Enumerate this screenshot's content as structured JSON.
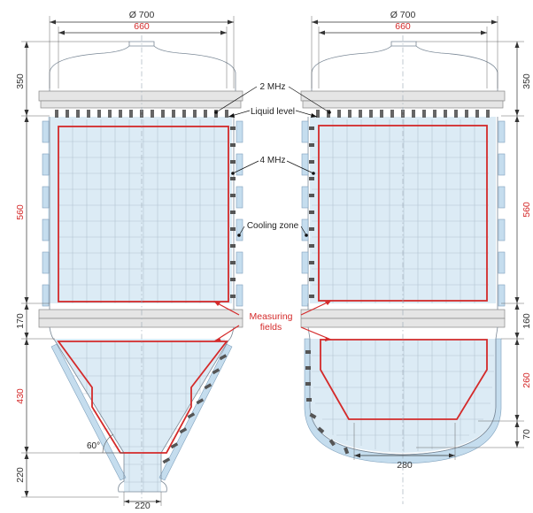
{
  "left_vessel": {
    "dims": {
      "outer_diameter": "Ø 700",
      "inner_width": "660",
      "lid_height": "350",
      "field_height": "560",
      "flange_zone": "170",
      "cone_height": "430",
      "outlet_height": "220",
      "outlet_width": "220",
      "cone_angle": "60°"
    }
  },
  "right_vessel": {
    "dims": {
      "outer_diameter": "Ø 700",
      "inner_width": "660",
      "lid_height": "350",
      "field_height": "560",
      "flange_zone": "160",
      "bottom_height": "260",
      "dish_depth": "70",
      "bottom_width": "280"
    }
  },
  "labels": {
    "transducer_2mhz": "2 MHz",
    "liquid_level": "Liquid level",
    "transducer_4mhz": "4 MHz",
    "cooling_zone": "Cooling zone",
    "measuring_fields_line1": "Measuring",
    "measuring_fields_line2": "fields"
  },
  "colors": {
    "measuring_field": "#d42a2a",
    "liquid": "#dcebf5",
    "cooling_jacket": "#c5ddee",
    "dimension_text": "#d42a2a"
  }
}
